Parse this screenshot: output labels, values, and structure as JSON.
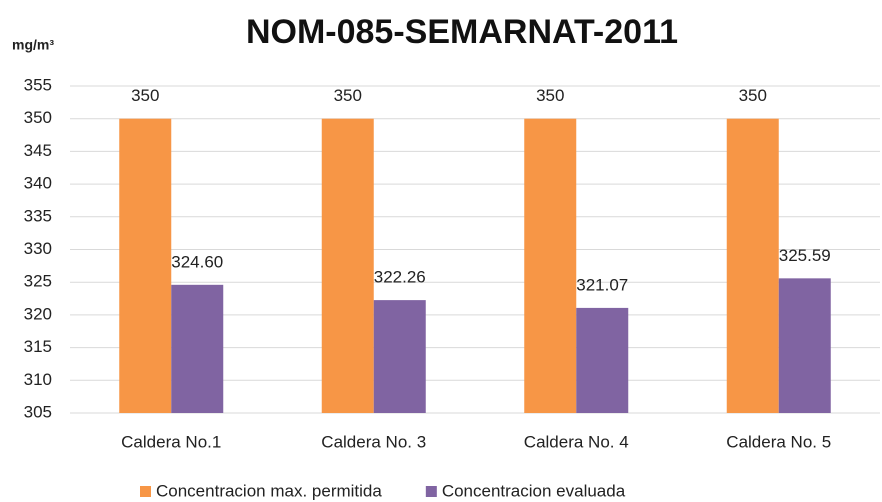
{
  "chart_data": {
    "type": "bar",
    "title": "NOM-085-SEMARNAT-2011",
    "y_label": "mg/m³",
    "categories": [
      "Caldera No.1",
      "Caldera No. 3",
      "Caldera No. 4",
      "Caldera No. 5"
    ],
    "series": [
      {
        "name": "Concentracion max. permitida",
        "color": "#f79646",
        "values": [
          350,
          350,
          350,
          350
        ]
      },
      {
        "name": "Concentracion evaluada",
        "color": "#8064a2",
        "values": [
          324.6,
          322.26,
          321.07,
          325.59
        ],
        "value_labels": [
          "324.60",
          "322.26",
          "321.07",
          "325.59"
        ]
      }
    ],
    "ylim": [
      305,
      355
    ],
    "yticks": [
      305,
      310,
      315,
      320,
      325,
      330,
      335,
      340,
      345,
      350,
      355
    ],
    "grid": true,
    "legend": "bottom"
  }
}
